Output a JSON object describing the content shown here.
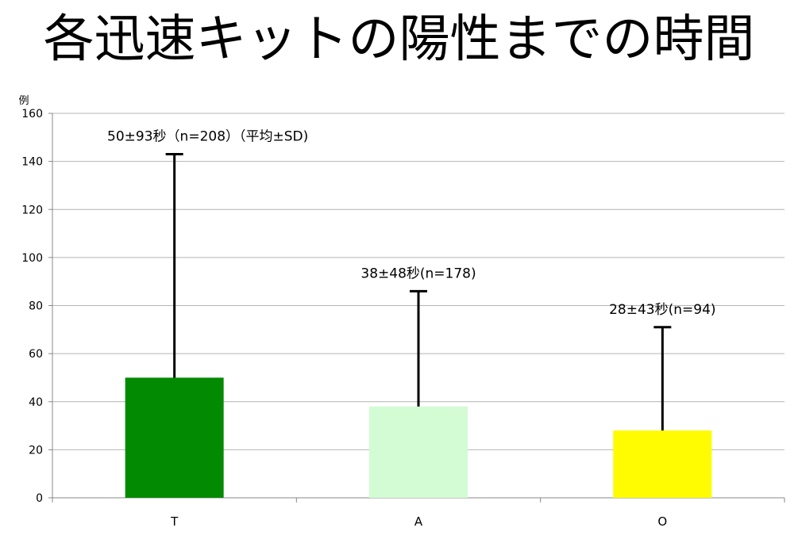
{
  "chart_data": {
    "type": "bar",
    "title": "各迅速キットの陽性までの時間",
    "ylabel": "例",
    "xlabel": "",
    "ylim": [
      0,
      160
    ],
    "yticks": [
      0,
      20,
      40,
      60,
      80,
      100,
      120,
      140,
      160
    ],
    "grid": true,
    "legend": "none",
    "categories": [
      "T",
      "A",
      "O"
    ],
    "values": [
      50,
      38,
      28
    ],
    "errors": [
      93,
      48,
      43
    ],
    "colors": [
      "#038a03",
      "#d3fbd4",
      "#fffb00"
    ],
    "annotations": [
      "50±93秒（n=208）（平均±SD)",
      "38±48秒(n=178)",
      "28±43秒(n=94)"
    ]
  }
}
